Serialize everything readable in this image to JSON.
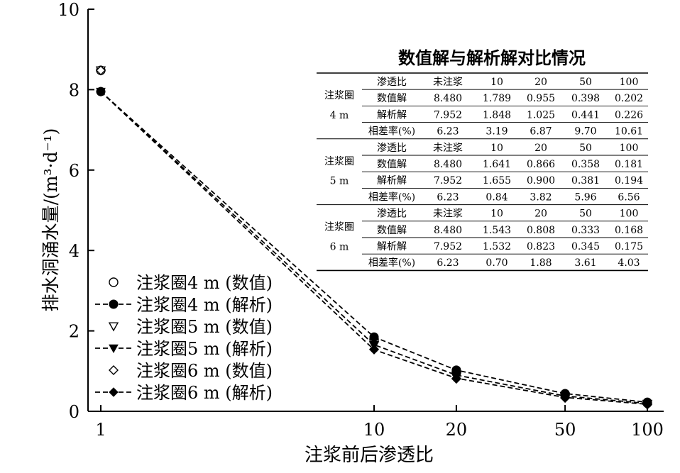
{
  "chart_data": {
    "type": "line",
    "x_scale": "log",
    "x": [
      1,
      10,
      20,
      50,
      100
    ],
    "xlabel": "注浆前后渗透比",
    "ylabel": "排水洞涌水量/(m³·d⁻¹)",
    "ylim": [
      0,
      10
    ],
    "y_ticks": [
      "0",
      "2",
      "4",
      "6",
      "8",
      "10"
    ],
    "x_ticks": [
      "1",
      "10",
      "20",
      "50",
      "100"
    ],
    "grid": false,
    "legend_position": "bottom-left",
    "series": [
      {
        "name": "注浆圈4 m (数值)",
        "marker": "circle-open",
        "line": "none",
        "values": [
          8.48,
          1.789,
          0.955,
          0.398,
          0.202
        ]
      },
      {
        "name": "注浆圈4 m (解析)",
        "marker": "circle-filled",
        "line": "dashed",
        "values": [
          7.952,
          1.848,
          1.025,
          0.441,
          0.226
        ]
      },
      {
        "name": "注浆圈5 m (数值)",
        "marker": "triangle-open",
        "line": "none",
        "values": [
          8.48,
          1.641,
          0.866,
          0.358,
          0.181
        ]
      },
      {
        "name": "注浆圈5 m (解析)",
        "marker": "triangle-filled",
        "line": "dashed",
        "values": [
          7.952,
          1.655,
          0.9,
          0.381,
          0.194
        ]
      },
      {
        "name": "注浆圈6 m (数值)",
        "marker": "diamond-open",
        "line": "none",
        "values": [
          8.48,
          1.543,
          0.808,
          0.333,
          0.168
        ]
      },
      {
        "name": "注浆圈6 m (解析)",
        "marker": "diamond-filled",
        "line": "dashed",
        "values": [
          7.952,
          1.532,
          0.823,
          0.345,
          0.175
        ]
      }
    ],
    "inset_table": {
      "title": "数值解与解析解对比情况",
      "header": [
        "渗透比",
        "未注浆",
        "10",
        "20",
        "50",
        "100"
      ],
      "groups": [
        {
          "label_line1": "注浆圈",
          "label_line2": "4 m",
          "rows": [
            [
              "渗透比",
              "未注浆",
              "10",
              "20",
              "50",
              "100"
            ],
            [
              "数值解",
              "8.480",
              "1.789",
              "0.955",
              "0.398",
              "0.202"
            ],
            [
              "解析解",
              "7.952",
              "1.848",
              "1.025",
              "0.441",
              "0.226"
            ],
            [
              "相差率(%)",
              "6.23",
              "3.19",
              "6.87",
              "9.70",
              "10.61"
            ]
          ]
        },
        {
          "label_line1": "注浆圈",
          "label_line2": "5 m",
          "rows": [
            [
              "渗透比",
              "未注浆",
              "10",
              "20",
              "50",
              "100"
            ],
            [
              "数值解",
              "8.480",
              "1.641",
              "0.866",
              "0.358",
              "0.181"
            ],
            [
              "解析解",
              "7.952",
              "1.655",
              "0.900",
              "0.381",
              "0.194"
            ],
            [
              "相差率(%)",
              "6.23",
              "0.84",
              "3.82",
              "5.96",
              "6.56"
            ]
          ]
        },
        {
          "label_line1": "注浆圈",
          "label_line2": "6 m",
          "rows": [
            [
              "渗透比",
              "未注浆",
              "10",
              "20",
              "50",
              "100"
            ],
            [
              "数值解",
              "8.480",
              "1.543",
              "0.808",
              "0.333",
              "0.168"
            ],
            [
              "解析解",
              "7.952",
              "1.532",
              "0.823",
              "0.345",
              "0.175"
            ],
            [
              "相差率(%)",
              "6.23",
              "0.70",
              "1.88",
              "3.61",
              "4.03"
            ]
          ]
        }
      ]
    }
  }
}
